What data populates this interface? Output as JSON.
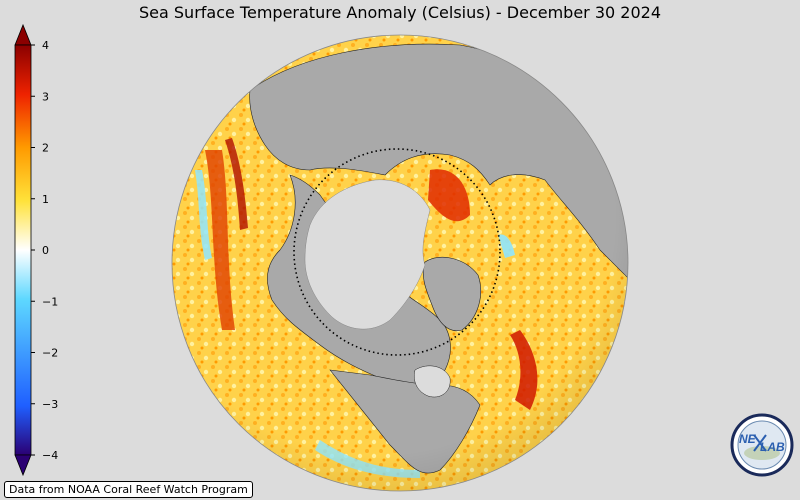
{
  "title": "Sea Surface Temperature Anomaly (Celsius) - December 30 2024",
  "colorbar": {
    "min": -4,
    "max": 4,
    "ticks": [
      "4",
      "3",
      "2",
      "1",
      "0",
      "−1",
      "−2",
      "−3",
      "−4"
    ],
    "colors": [
      "#2b0073",
      "#1f5fff",
      "#5ed8ff",
      "#ffffff",
      "#ffe23a",
      "#ff9a00",
      "#ee2200",
      "#8b0000"
    ]
  },
  "credit": "Data from NOAA Coral Reef Watch Program",
  "logo": {
    "text_left": "NE",
    "text_right": "LAB"
  },
  "map_colors": {
    "land": "#a9a9a9",
    "ice": "#dcdcdc",
    "ocean_warm": "#ffd24a",
    "hot": "#e04000",
    "cold": "#8fe6ff"
  }
}
